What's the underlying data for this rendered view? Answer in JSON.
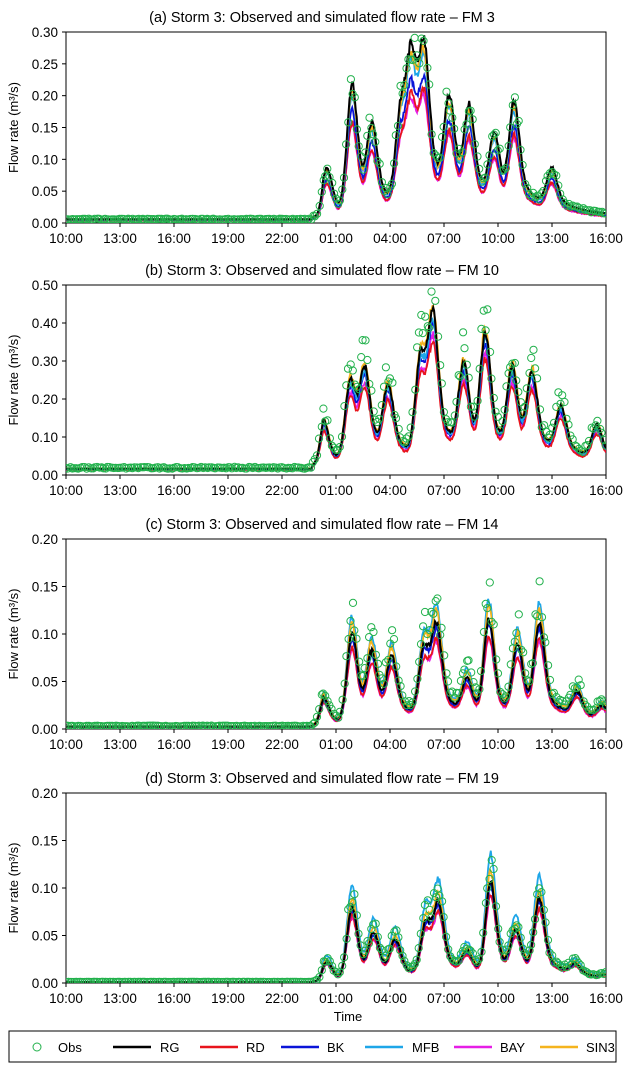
{
  "colors": {
    "Obs": "#22b14c",
    "RG": "#000000",
    "RD": "#e8141c",
    "BK": "#0a14d8",
    "MFB": "#1ea6e8",
    "BAY": "#e61ee6",
    "SIN3": "#f5b41e"
  },
  "legend": [
    "Obs",
    "RG",
    "RD",
    "BK",
    "MFB",
    "BAY",
    "SIN3"
  ],
  "chart_data": [
    {
      "type": "line",
      "title": "(a) Storm 3: Observed and simulated flow rate – FM 3",
      "ylabel": "Flow rate (m³/s)",
      "xlabel": "",
      "ylim": [
        0,
        0.3
      ],
      "yticks": [
        "0.00",
        "0.05",
        "0.10",
        "0.15",
        "0.20",
        "0.25",
        "0.30"
      ],
      "xticks": [
        "10:00",
        "13:00",
        "16:00",
        "19:00",
        "22:00",
        "01:00",
        "04:00",
        "07:00",
        "10:00",
        "13:00",
        "16:00"
      ],
      "xunit": "hours since 10:00",
      "x_range": [
        0,
        30
      ],
      "peaks": [
        {
          "t": 14.5,
          "h": 0.09
        },
        {
          "t": 15.9,
          "h": 0.24
        },
        {
          "t": 17.0,
          "h": 0.14
        },
        {
          "t": 18.6,
          "h": 0.17
        },
        {
          "t": 19.2,
          "h": 0.25
        },
        {
          "t": 19.9,
          "h": 0.25
        },
        {
          "t": 21.3,
          "h": 0.17
        },
        {
          "t": 22.4,
          "h": 0.16
        },
        {
          "t": 23.8,
          "h": 0.12
        },
        {
          "t": 24.9,
          "h": 0.18
        },
        {
          "t": 27.0,
          "h": 0.07
        },
        {
          "t": 31.0,
          "h": 0.04
        }
      ],
      "baseline": 0.01,
      "series": [
        {
          "name": "Obs",
          "scale": 1.0
        },
        {
          "name": "RG",
          "scale": 1.0
        },
        {
          "name": "RD",
          "scale": 0.72
        },
        {
          "name": "BK",
          "scale": 0.8
        },
        {
          "name": "MFB",
          "scale": 0.92
        },
        {
          "name": "BAY",
          "scale": 0.7
        },
        {
          "name": "SIN3",
          "scale": 0.95
        }
      ]
    },
    {
      "type": "line",
      "title": "(b) Storm 3: Observed and simulated flow rate – FM 10",
      "ylabel": "Flow rate (m³/s)",
      "xlabel": "",
      "ylim": [
        0,
        0.5
      ],
      "yticks": [
        "0.00",
        "0.10",
        "0.20",
        "0.30",
        "0.40",
        "0.50"
      ],
      "xticks": [
        "10:00",
        "13:00",
        "16:00",
        "19:00",
        "22:00",
        "01:00",
        "04:00",
        "07:00",
        "10:00",
        "13:00",
        "16:00"
      ],
      "xunit": "hours since 10:00",
      "x_range": [
        0,
        30
      ],
      "peaks": [
        {
          "t": 14.3,
          "h": 0.15
        },
        {
          "t": 15.8,
          "h": 0.27
        },
        {
          "t": 16.6,
          "h": 0.28
        },
        {
          "t": 17.9,
          "h": 0.22
        },
        {
          "t": 19.7,
          "h": 0.33
        },
        {
          "t": 20.4,
          "h": 0.43
        },
        {
          "t": 22.1,
          "h": 0.28
        },
        {
          "t": 23.3,
          "h": 0.38
        },
        {
          "t": 24.8,
          "h": 0.27
        },
        {
          "t": 25.9,
          "h": 0.25
        },
        {
          "t": 27.5,
          "h": 0.15
        },
        {
          "t": 29.5,
          "h": 0.11
        }
      ],
      "baseline": 0.03,
      "series": [
        {
          "name": "Obs",
          "scale": 1.05
        },
        {
          "name": "RG",
          "scale": 0.92
        },
        {
          "name": "RD",
          "scale": 0.75
        },
        {
          "name": "BK",
          "scale": 0.85
        },
        {
          "name": "MFB",
          "scale": 0.88
        },
        {
          "name": "BAY",
          "scale": 0.78
        },
        {
          "name": "SIN3",
          "scale": 0.95
        }
      ]
    },
    {
      "type": "line",
      "title": "(c) Storm 3: Observed and simulated flow rate – FM 14",
      "ylabel": "Flow rate (m³/s)",
      "xlabel": "",
      "ylim": [
        0,
        0.2
      ],
      "yticks": [
        "0.00",
        "0.05",
        "0.10",
        "0.15",
        "0.20"
      ],
      "xticks": [
        "10:00",
        "13:00",
        "16:00",
        "19:00",
        "22:00",
        "01:00",
        "04:00",
        "07:00",
        "10:00",
        "13:00",
        "16:00"
      ],
      "xunit": "hours since 10:00",
      "x_range": [
        0,
        30
      ],
      "peaks": [
        {
          "t": 14.3,
          "h": 0.04
        },
        {
          "t": 15.9,
          "h": 0.13
        },
        {
          "t": 17.0,
          "h": 0.09
        },
        {
          "t": 18.1,
          "h": 0.08
        },
        {
          "t": 19.9,
          "h": 0.1
        },
        {
          "t": 20.6,
          "h": 0.12
        },
        {
          "t": 22.3,
          "h": 0.05
        },
        {
          "t": 23.5,
          "h": 0.14
        },
        {
          "t": 25.1,
          "h": 0.1
        },
        {
          "t": 26.3,
          "h": 0.13
        },
        {
          "t": 28.4,
          "h": 0.035
        },
        {
          "t": 29.8,
          "h": 0.02
        }
      ],
      "baseline": 0.005,
      "series": [
        {
          "name": "Obs",
          "scale": 1.05
        },
        {
          "name": "RG",
          "scale": 0.85
        },
        {
          "name": "RD",
          "scale": 0.72
        },
        {
          "name": "BK",
          "scale": 0.8
        },
        {
          "name": "MFB",
          "scale": 1.0
        },
        {
          "name": "BAY",
          "scale": 0.7
        },
        {
          "name": "SIN3",
          "scale": 0.95
        }
      ]
    },
    {
      "type": "line",
      "title": "(d) Storm 3: Observed and simulated flow rate – FM 19",
      "ylabel": "Flow rate (m³/s)",
      "xlabel": "Time",
      "ylim": [
        0,
        0.2
      ],
      "yticks": [
        "0.00",
        "0.05",
        "0.10",
        "0.15",
        "0.20"
      ],
      "xticks": [
        "10:00",
        "13:00",
        "16:00",
        "19:00",
        "22:00",
        "01:00",
        "04:00",
        "07:00",
        "10:00",
        "13:00",
        "16:00"
      ],
      "xunit": "hours since 10:00",
      "x_range": [
        0,
        30
      ],
      "peaks": [
        {
          "t": 14.5,
          "h": 0.03
        },
        {
          "t": 15.9,
          "h": 0.11
        },
        {
          "t": 17.1,
          "h": 0.06
        },
        {
          "t": 18.3,
          "h": 0.05
        },
        {
          "t": 20.0,
          "h": 0.08
        },
        {
          "t": 20.7,
          "h": 0.1
        },
        {
          "t": 22.3,
          "h": 0.03
        },
        {
          "t": 23.6,
          "h": 0.14
        },
        {
          "t": 25.0,
          "h": 0.06
        },
        {
          "t": 26.3,
          "h": 0.11
        },
        {
          "t": 28.3,
          "h": 0.015
        },
        {
          "t": 30.0,
          "h": 0.005
        }
      ],
      "baseline": 0.002,
      "series": [
        {
          "name": "Obs",
          "scale": 0.95
        },
        {
          "name": "RG",
          "scale": 0.82
        },
        {
          "name": "RD",
          "scale": 0.72
        },
        {
          "name": "BK",
          "scale": 0.78
        },
        {
          "name": "MFB",
          "scale": 1.05
        },
        {
          "name": "BAY",
          "scale": 0.7
        },
        {
          "name": "SIN3",
          "scale": 0.9
        }
      ]
    }
  ]
}
